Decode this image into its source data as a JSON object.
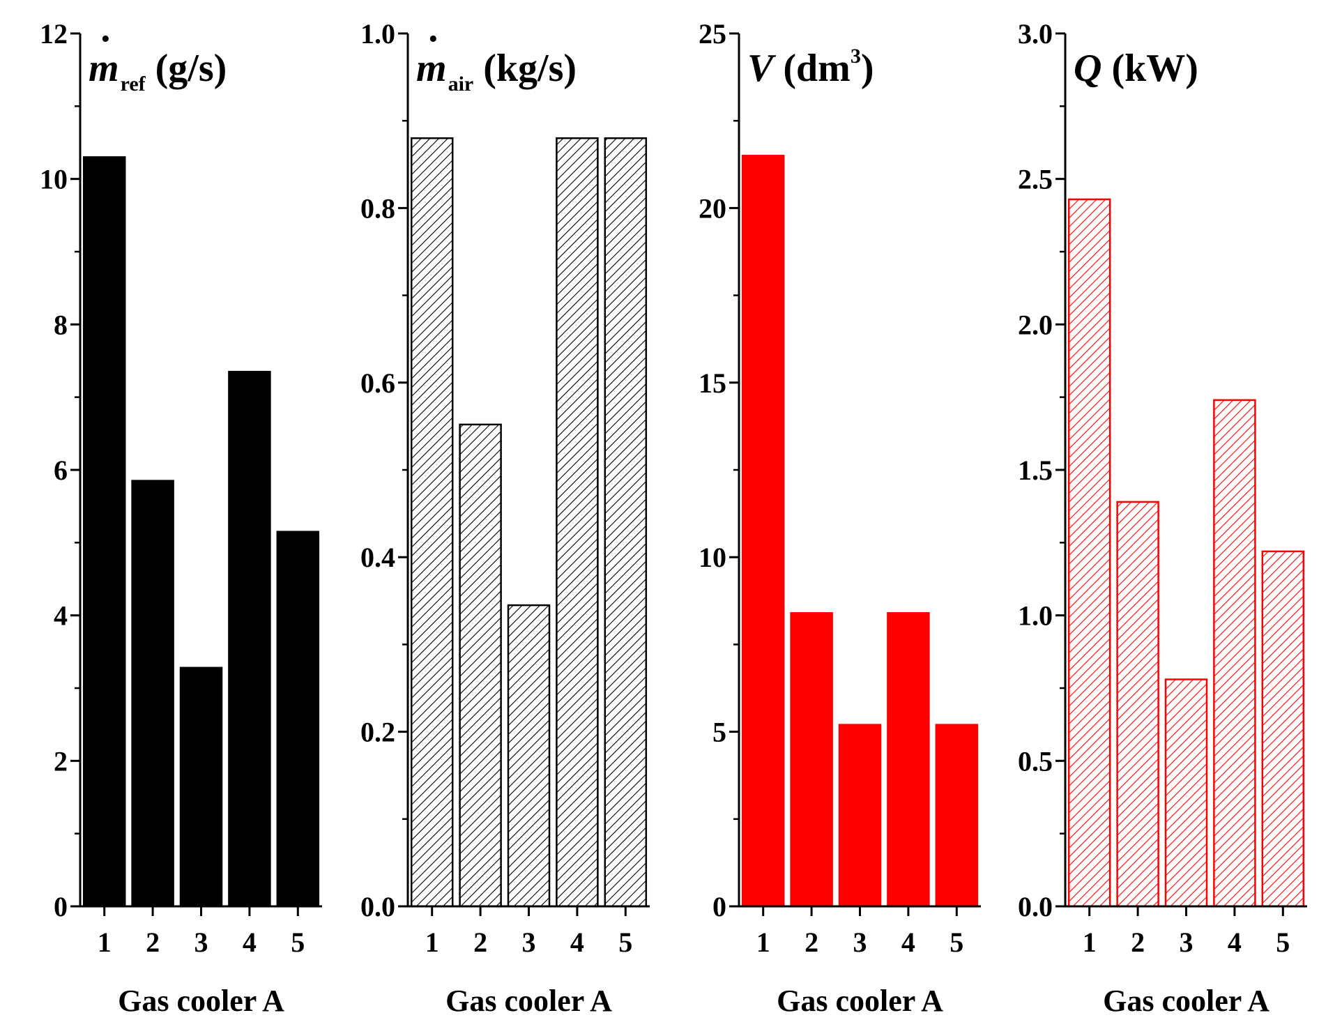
{
  "colors": {
    "black": "#000000",
    "red": "#ff0000",
    "white": "#ffffff"
  },
  "chart_data": [
    {
      "type": "bar",
      "fill": "solid-black",
      "title": {
        "main": "m",
        "dot": "·",
        "sub": "ref",
        "unit": "(g/s)",
        "sup": ""
      },
      "categories": [
        "1",
        "2",
        "3",
        "4",
        "5"
      ],
      "values": [
        10.3,
        5.85,
        3.28,
        7.35,
        5.15
      ],
      "ylim": [
        0,
        12
      ],
      "yticks": [
        0,
        2,
        4,
        6,
        8,
        10,
        12
      ],
      "ytick_labels": [
        "0",
        "2",
        "4",
        "6",
        "8",
        "10",
        "12"
      ],
      "xlabel": "Gas cooler A"
    },
    {
      "type": "bar",
      "fill": "hatched-black",
      "title": {
        "main": "m",
        "dot": "·",
        "sub": "air",
        "unit": "(kg/s)",
        "sup": ""
      },
      "categories": [
        "1",
        "2",
        "3",
        "4",
        "5"
      ],
      "values": [
        0.88,
        0.552,
        0.345,
        0.88,
        0.88
      ],
      "ylim": [
        0,
        1.0
      ],
      "yticks": [
        0,
        0.2,
        0.4,
        0.6,
        0.8,
        1.0
      ],
      "ytick_labels": [
        "0.0",
        "0.2",
        "0.4",
        "0.6",
        "0.8",
        "1.0"
      ],
      "xlabel": "Gas cooler A"
    },
    {
      "type": "bar",
      "fill": "solid-red",
      "title": {
        "main": "V",
        "dot": "",
        "sub": "",
        "unit": "(dm",
        "sup": "3",
        "close": ")"
      },
      "categories": [
        "1",
        "2",
        "3",
        "4",
        "5"
      ],
      "values": [
        21.5,
        8.4,
        5.2,
        8.4,
        5.2
      ],
      "ylim": [
        0,
        25
      ],
      "yticks": [
        0,
        5,
        10,
        15,
        20,
        25
      ],
      "ytick_labels": [
        "0",
        "5",
        "10",
        "15",
        "20",
        "25"
      ],
      "xlabel": "Gas cooler A"
    },
    {
      "type": "bar",
      "fill": "hatched-red",
      "title": {
        "main": "Q",
        "dot": "",
        "sub": "",
        "unit": "(kW)",
        "sup": ""
      },
      "categories": [
        "1",
        "2",
        "3",
        "4",
        "5"
      ],
      "values": [
        2.43,
        1.39,
        0.78,
        1.74,
        1.22
      ],
      "ylim": [
        0,
        3.0
      ],
      "yticks": [
        0,
        0.5,
        1.0,
        1.5,
        2.0,
        2.5,
        3.0
      ],
      "ytick_labels": [
        "0.0",
        "0.5",
        "1.0",
        "1.5",
        "2.0",
        "2.5",
        "3.0"
      ],
      "xlabel": "Gas cooler A"
    }
  ]
}
